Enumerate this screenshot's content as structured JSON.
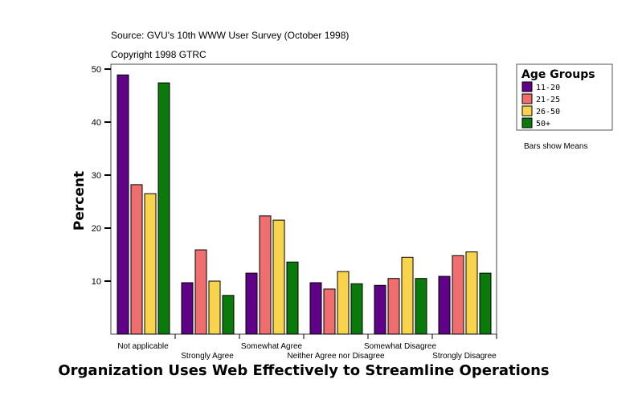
{
  "chart_data": {
    "type": "bar",
    "source": "Source: GVU's 10th WWW User Survey (October 1998)",
    "copyright": "Copyright 1998 GTRC",
    "xlabel": "Organization Uses Web Effectively to Streamline Operations",
    "ylabel": "Percent",
    "ylim": [
      0,
      50
    ],
    "yticks": [
      10,
      20,
      30,
      40,
      50
    ],
    "grid": false,
    "note": "Bars show Means",
    "legend": {
      "title": "Age Groups",
      "position": "top-right"
    },
    "categories": [
      "Not applicable",
      "Strongly Agree",
      "Somewhat Agree",
      "Neither Agree nor Disagree",
      "Somewhat Disagree",
      "Strongly Disagree"
    ],
    "series": [
      {
        "name": "11-20",
        "color": "#5f0087",
        "values": [
          48.9,
          9.7,
          11.5,
          9.7,
          9.2,
          10.9
        ]
      },
      {
        "name": "21-25",
        "color": "#f06e6e",
        "values": [
          28.2,
          15.9,
          22.3,
          8.5,
          10.5,
          14.8
        ]
      },
      {
        "name": "26-50",
        "color": "#f8d44c",
        "values": [
          26.5,
          10.0,
          21.5,
          11.8,
          14.5,
          15.5
        ]
      },
      {
        "name": "50+",
        "color": "#0a7a0a",
        "values": [
          47.4,
          7.3,
          13.6,
          9.5,
          10.5,
          11.5
        ]
      }
    ]
  }
}
